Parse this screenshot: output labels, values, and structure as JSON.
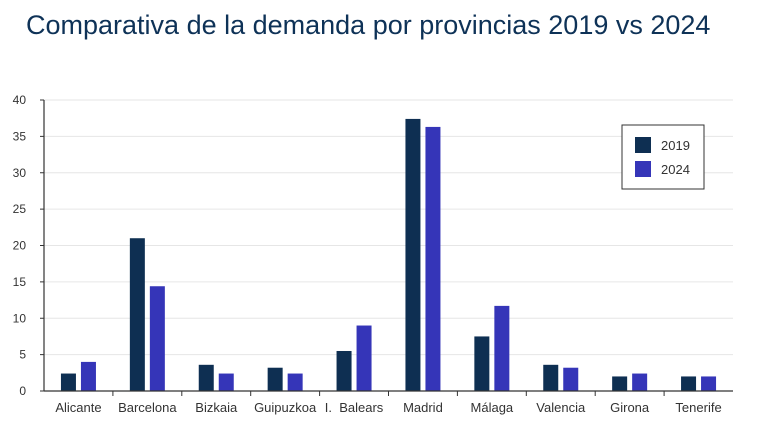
{
  "chart_data": {
    "type": "bar",
    "title": "Comparativa de la demanda por provincias 2019 vs 2024",
    "xlabel": "",
    "ylabel": "",
    "ylim": [
      0,
      40
    ],
    "yticks": [
      0,
      5,
      10,
      15,
      20,
      25,
      30,
      35,
      40
    ],
    "grid": true,
    "legend_position": "top-right",
    "categories": [
      "Alicante",
      "Barcelona",
      "Bizkaia",
      "Guipuzkoa",
      "I.  Balears",
      "Madrid",
      "Málaga",
      "Valencia",
      "Girona",
      "Tenerife"
    ],
    "series": [
      {
        "name": "2019",
        "color": "#0e2f52",
        "values": [
          2.4,
          21.0,
          3.6,
          3.2,
          5.5,
          37.4,
          7.5,
          3.6,
          2.0,
          2.0
        ]
      },
      {
        "name": "2024",
        "color": "#3535b8",
        "values": [
          4.0,
          14.4,
          2.4,
          2.4,
          9.0,
          36.3,
          11.7,
          3.2,
          2.4,
          2.0
        ]
      }
    ]
  }
}
